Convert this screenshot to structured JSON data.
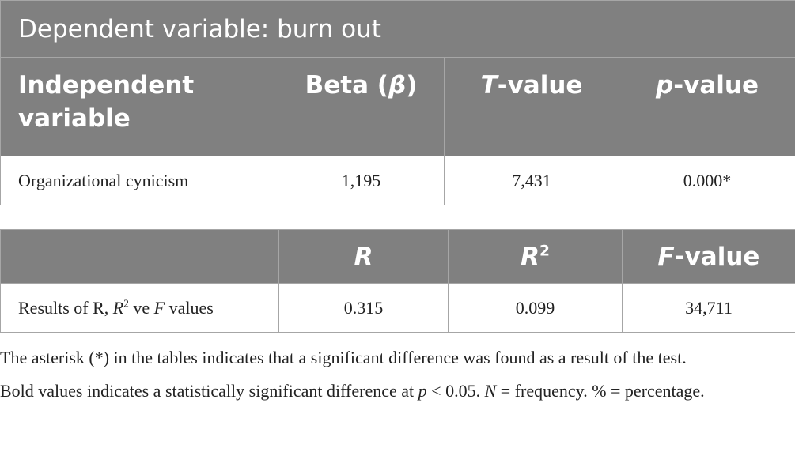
{
  "table1": {
    "title": "Dependent variable: burn out",
    "header": [
      [
        "Independent variable"
      ],
      [
        "Beta (",
        "β",
        ")"
      ],
      [
        "T",
        "-value"
      ],
      [
        "p",
        "-value"
      ]
    ],
    "rows": [
      [
        "Organizational cynicism",
        "1,195",
        "7,431",
        "0.000*"
      ]
    ]
  },
  "table2": {
    "header": [
      [
        "R"
      ],
      [
        "R",
        "2"
      ],
      [
        "F",
        "-value"
      ]
    ],
    "rows": [
      [
        [
          "Results of R, ",
          "R",
          "2",
          " ve ",
          "F",
          " values"
        ],
        "0.315",
        "0.099",
        "34,711"
      ]
    ]
  },
  "notes": [
    [
      "The asterisk (*) in the tables indicates that a significant difference was found as a result of the test."
    ],
    [
      "Bold values indicates a statistically significant difference at ",
      "p",
      " < 0.05. ",
      "N",
      " = frequency. % = percentage."
    ]
  ]
}
